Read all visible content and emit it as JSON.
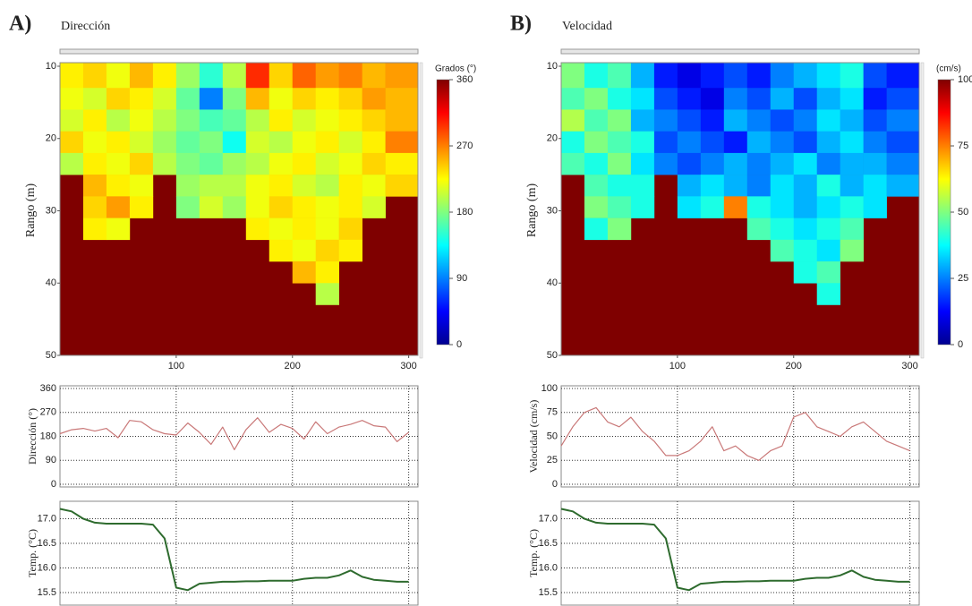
{
  "chart_data": [
    {
      "type": "heatmap",
      "panel_label": "A)",
      "title": "Dirección",
      "y_label": "Rango (m)",
      "x_bins": [
        0,
        20,
        40,
        60,
        80,
        100,
        120,
        140,
        160,
        180,
        200,
        220,
        240,
        260,
        280,
        308
      ],
      "y_bins": [
        10,
        13,
        16,
        19,
        22,
        25,
        28,
        31,
        34,
        37,
        40,
        43
      ],
      "values": [
        [
          230,
          240,
          220,
          250,
          230,
          190,
          150,
          200,
          300,
          240,
          280,
          260,
          270,
          250,
          260
        ],
        [
          220,
          210,
          240,
          230,
          210,
          170,
          90,
          180,
          250,
          220,
          240,
          230,
          240,
          260,
          250
        ],
        [
          210,
          230,
          200,
          220,
          200,
          180,
          160,
          170,
          200,
          230,
          210,
          220,
          230,
          240,
          250
        ],
        [
          240,
          220,
          230,
          210,
          190,
          170,
          180,
          140,
          210,
          200,
          220,
          230,
          210,
          230,
          270
        ],
        [
          200,
          230,
          220,
          240,
          200,
          180,
          170,
          190,
          200,
          220,
          230,
          210,
          220,
          240,
          230
        ],
        [
          null,
          250,
          230,
          220,
          null,
          190,
          200,
          200,
          220,
          230,
          210,
          200,
          230,
          220,
          240
        ],
        [
          null,
          240,
          260,
          230,
          null,
          180,
          210,
          190,
          220,
          240,
          230,
          220,
          230,
          210,
          null
        ],
        [
          null,
          230,
          220,
          null,
          null,
          null,
          null,
          null,
          230,
          220,
          230,
          220,
          240,
          null,
          null
        ],
        [
          null,
          null,
          null,
          null,
          null,
          null,
          null,
          null,
          null,
          230,
          220,
          240,
          230,
          null,
          null
        ],
        [
          null,
          null,
          null,
          null,
          null,
          null,
          null,
          null,
          null,
          null,
          250,
          230,
          null,
          null,
          null
        ],
        [
          null,
          null,
          null,
          null,
          null,
          null,
          null,
          null,
          null,
          null,
          null,
          200,
          null,
          null,
          null
        ]
      ],
      "xlim": [
        0,
        308
      ],
      "ylim": [
        10,
        50
      ],
      "xticks": [
        100,
        200,
        300
      ],
      "yticks": [
        10,
        20,
        30,
        40,
        50
      ],
      "colorbar_label": "Grados (°)",
      "colorbar_lim": [
        0,
        360
      ],
      "colorbar_ticks": [
        0,
        90,
        180,
        270,
        360
      ],
      "colormap": "jet",
      "background_color": "#7f0000"
    },
    {
      "type": "line",
      "y_label": "Dirección (°)",
      "x": [
        0,
        10,
        20,
        30,
        40,
        50,
        60,
        70,
        80,
        90,
        100,
        110,
        120,
        130,
        140,
        150,
        160,
        170,
        180,
        190,
        200,
        210,
        220,
        230,
        240,
        250,
        260,
        270,
        280,
        290,
        300
      ],
      "series": [
        {
          "color": "#c97878",
          "values": [
            190,
            205,
            210,
            200,
            210,
            175,
            240,
            235,
            205,
            190,
            185,
            230,
            195,
            150,
            215,
            130,
            205,
            250,
            195,
            225,
            210,
            170,
            235,
            190,
            215,
            225,
            240,
            220,
            215,
            160,
            195
          ]
        }
      ],
      "xlim": [
        0,
        308
      ],
      "ylim": [
        0,
        360
      ],
      "xticks": [
        100,
        200,
        300
      ],
      "xtick_labels": false,
      "yticks": [
        0,
        90,
        180,
        270,
        360
      ],
      "grid": true
    },
    {
      "type": "line",
      "y_label": "Temp. (°C)",
      "x": [
        0,
        10,
        20,
        30,
        40,
        50,
        60,
        70,
        80,
        90,
        100,
        110,
        120,
        130,
        140,
        150,
        160,
        170,
        180,
        190,
        200,
        210,
        220,
        230,
        240,
        250,
        260,
        270,
        280,
        290,
        300
      ],
      "series": [
        {
          "color": "#2e6b2e",
          "values": [
            17.2,
            17.15,
            17.0,
            16.92,
            16.9,
            16.9,
            16.9,
            16.9,
            16.88,
            16.6,
            15.6,
            15.55,
            15.68,
            15.7,
            15.72,
            15.72,
            15.73,
            15.73,
            15.74,
            15.74,
            15.74,
            15.78,
            15.8,
            15.8,
            15.85,
            15.95,
            15.82,
            15.76,
            15.74,
            15.72,
            15.72
          ]
        }
      ],
      "xlim": [
        0,
        308
      ],
      "ylim": [
        15.3,
        17.3
      ],
      "xticks": [
        100,
        200,
        300
      ],
      "xtick_labels": false,
      "yticks": [
        15.5,
        {
          "value": 16,
          "label": "16.0"
        },
        16.5,
        {
          "value": 17,
          "label": "17.0"
        }
      ],
      "grid": true
    },
    {
      "type": "heatmap",
      "panel_label": "B)",
      "title": "Velocidad",
      "y_label": "Rango (m)",
      "x_bins": [
        0,
        20,
        40,
        60,
        80,
        100,
        120,
        140,
        160,
        180,
        200,
        220,
        240,
        260,
        280,
        308
      ],
      "y_bins": [
        10,
        13,
        16,
        19,
        22,
        25,
        28,
        31,
        34,
        37,
        40,
        43
      ],
      "values": [
        [
          50,
          40,
          45,
          30,
          15,
          10,
          15,
          20,
          15,
          25,
          30,
          35,
          40,
          20,
          15
        ],
        [
          45,
          50,
          40,
          35,
          20,
          15,
          10,
          25,
          20,
          30,
          20,
          30,
          35,
          15,
          20
        ],
        [
          55,
          45,
          50,
          30,
          25,
          20,
          15,
          30,
          25,
          20,
          25,
          35,
          30,
          20,
          25
        ],
        [
          40,
          50,
          45,
          40,
          20,
          25,
          20,
          15,
          30,
          25,
          20,
          30,
          35,
          25,
          20
        ],
        [
          45,
          40,
          50,
          35,
          25,
          20,
          25,
          30,
          25,
          30,
          35,
          25,
          30,
          30,
          25
        ],
        [
          null,
          45,
          40,
          40,
          null,
          30,
          35,
          30,
          25,
          35,
          30,
          40,
          30,
          35,
          30
        ],
        [
          null,
          50,
          45,
          40,
          null,
          35,
          40,
          75,
          40,
          35,
          30,
          35,
          40,
          35,
          null
        ],
        [
          null,
          40,
          50,
          null,
          null,
          null,
          null,
          null,
          45,
          40,
          35,
          40,
          45,
          null,
          null
        ],
        [
          null,
          null,
          null,
          null,
          null,
          null,
          null,
          null,
          null,
          45,
          40,
          35,
          50,
          null,
          null
        ],
        [
          null,
          null,
          null,
          null,
          null,
          null,
          null,
          null,
          null,
          null,
          40,
          45,
          null,
          null,
          null
        ],
        [
          null,
          null,
          null,
          null,
          null,
          null,
          null,
          null,
          null,
          null,
          null,
          40,
          null,
          null,
          null
        ]
      ],
      "xlim": [
        0,
        308
      ],
      "ylim": [
        10,
        50
      ],
      "xticks": [
        100,
        200,
        300
      ],
      "yticks": [
        10,
        20,
        30,
        40,
        50
      ],
      "colorbar_label": "(cm/s)",
      "colorbar_lim": [
        0,
        100
      ],
      "colorbar_ticks": [
        0,
        25,
        50,
        75,
        100
      ],
      "colormap": "jet",
      "background_color": "#7f0000"
    },
    {
      "type": "line",
      "y_label": "Velocidad (cm/s)",
      "x": [
        0,
        10,
        20,
        30,
        40,
        50,
        60,
        70,
        80,
        90,
        100,
        110,
        120,
        130,
        140,
        150,
        160,
        170,
        180,
        190,
        200,
        210,
        220,
        230,
        240,
        250,
        260,
        270,
        280,
        290,
        300
      ],
      "series": [
        {
          "color": "#c97878",
          "values": [
            40,
            60,
            75,
            80,
            65,
            60,
            70,
            55,
            45,
            30,
            30,
            35,
            45,
            60,
            35,
            40,
            30,
            25,
            35,
            40,
            70,
            75,
            60,
            55,
            50,
            60,
            65,
            55,
            45,
            40,
            35
          ]
        }
      ],
      "xlim": [
        0,
        308
      ],
      "ylim": [
        0,
        100
      ],
      "xticks": [
        100,
        200,
        300
      ],
      "xtick_labels": false,
      "yticks": [
        0,
        25,
        50,
        75,
        100
      ],
      "grid": true
    },
    {
      "type": "line",
      "y_label": "Temp. (°C)",
      "x": [
        0,
        10,
        20,
        30,
        40,
        50,
        60,
        70,
        80,
        90,
        100,
        110,
        120,
        130,
        140,
        150,
        160,
        170,
        180,
        190,
        200,
        210,
        220,
        230,
        240,
        250,
        260,
        270,
        280,
        290,
        300
      ],
      "series": [
        {
          "color": "#2e6b2e",
          "values": [
            17.2,
            17.15,
            17.0,
            16.92,
            16.9,
            16.9,
            16.9,
            16.9,
            16.88,
            16.6,
            15.6,
            15.55,
            15.68,
            15.7,
            15.72,
            15.72,
            15.73,
            15.73,
            15.74,
            15.74,
            15.74,
            15.78,
            15.8,
            15.8,
            15.85,
            15.95,
            15.82,
            15.76,
            15.74,
            15.72,
            15.72
          ]
        }
      ],
      "xlim": [
        0,
        308
      ],
      "ylim": [
        15.3,
        17.3
      ],
      "xticks": [
        100,
        200,
        300
      ],
      "xtick_labels": false,
      "yticks": [
        15.5,
        {
          "value": 16,
          "label": "16.0"
        },
        16.5,
        {
          "value": 17,
          "label": "17.0"
        }
      ],
      "grid": true
    }
  ]
}
